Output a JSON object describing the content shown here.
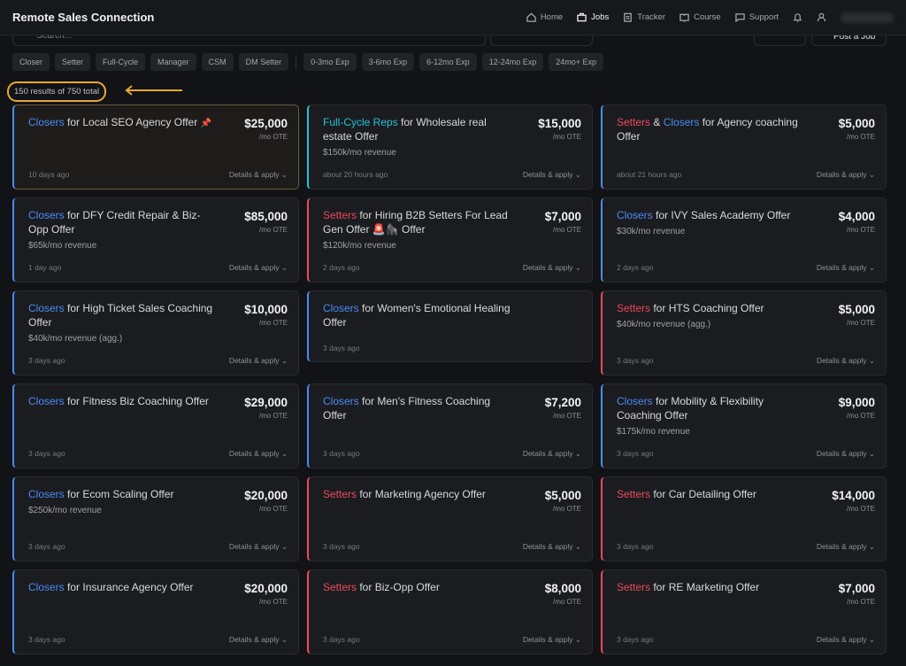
{
  "header": {
    "brand": "Remote Sales Connection",
    "nav": [
      "Home",
      "Jobs",
      "Tracker",
      "Course",
      "Support"
    ]
  },
  "search": {
    "placeholder": "Search...",
    "post": "Post a Job"
  },
  "filters": {
    "roles": [
      "Closer",
      "Setter",
      "Full-Cycle",
      "Manager",
      "CSM",
      "DM Setter"
    ],
    "experience": [
      "0-3mo Exp",
      "3-6mo Exp",
      "6-12mo Exp",
      "12-24mo Exp",
      "24mo+ Exp"
    ]
  },
  "results": "150 results of 750 total",
  "labels": {
    "per": "/mo OTE",
    "action": "Details & apply"
  },
  "role_colors": {
    "closer": "#4a8bf5",
    "setter": "#ec4a5a",
    "fullcycle": "#22c2d6"
  },
  "cards": [
    {
      "title": [
        {
          "text": "Closers",
          "role": "closer"
        },
        {
          "text": " for Local SEO Agency Offer"
        }
      ],
      "pin": "📌",
      "pinned": true,
      "price": "$25,000",
      "time": "10 days ago"
    },
    {
      "title": [
        {
          "text": "Full-Cycle Reps",
          "role": "fullcycle"
        },
        {
          "text": " for Wholesale real estate Offer"
        }
      ],
      "price": "$15,000",
      "revenue": "$150k/mo revenue",
      "time": "about 20 hours ago"
    },
    {
      "title": [
        {
          "text": "Setters",
          "role": "setter"
        },
        {
          "text": " & "
        },
        {
          "text": "Closers",
          "role": "closer"
        },
        {
          "text": " for Agency coaching Offer"
        }
      ],
      "price": "$5,000",
      "time": "about 21 hours ago"
    },
    {
      "title": [
        {
          "text": "Closers",
          "role": "closer"
        },
        {
          "text": " for DFY Credit Repair & Biz-Opp Offer"
        }
      ],
      "price": "$85,000",
      "revenue": "$65k/mo revenue",
      "time": "1 day ago"
    },
    {
      "title": [
        {
          "text": "Setters",
          "role": "setter"
        },
        {
          "text": " for Hiring B2B Setters For Lead Gen Offer 🚨🦍 Offer"
        }
      ],
      "price": "$7,000",
      "revenue": "$120k/mo revenue",
      "time": "2 days ago"
    },
    {
      "title": [
        {
          "text": "Closers",
          "role": "closer"
        },
        {
          "text": " for IVY Sales Academy Offer"
        }
      ],
      "price": "$4,000",
      "revenue": "$30k/mo revenue",
      "time": "2 days ago"
    },
    {
      "title": [
        {
          "text": "Closers",
          "role": "closer"
        },
        {
          "text": " for High Ticket Sales Coaching Offer"
        }
      ],
      "price": "$10,000",
      "revenue": "$40k/mo revenue (agg.)",
      "time": "3 days ago"
    },
    {
      "title": [
        {
          "text": "Closers",
          "role": "closer"
        },
        {
          "text": " for Women's Emotional Healing Offer"
        }
      ],
      "time": "3 days ago"
    },
    {
      "title": [
        {
          "text": "Setters",
          "role": "setter"
        },
        {
          "text": " for HTS Coaching Offer"
        }
      ],
      "price": "$5,000",
      "revenue": "$40k/mo revenue (agg.)",
      "time": "3 days ago"
    },
    {
      "title": [
        {
          "text": "Closers",
          "role": "closer"
        },
        {
          "text": " for Fitness Biz Coaching Offer"
        }
      ],
      "price": "$29,000",
      "time": "3 days ago"
    },
    {
      "title": [
        {
          "text": "Closers",
          "role": "closer"
        },
        {
          "text": " for Men's Fitness Coaching Offer"
        }
      ],
      "price": "$7,200",
      "time": "3 days ago"
    },
    {
      "title": [
        {
          "text": "Closers",
          "role": "closer"
        },
        {
          "text": " for Mobility & Flexibility Coaching Offer"
        }
      ],
      "price": "$9,000",
      "revenue": "$175k/mo revenue",
      "time": "3 days ago"
    },
    {
      "title": [
        {
          "text": "Closers",
          "role": "closer"
        },
        {
          "text": " for Ecom Scaling Offer"
        }
      ],
      "price": "$20,000",
      "revenue": "$250k/mo revenue",
      "time": "3 days ago"
    },
    {
      "title": [
        {
          "text": "Setters",
          "role": "setter"
        },
        {
          "text": " for Marketing Agency Offer"
        }
      ],
      "price": "$5,000",
      "time": "3 days ago"
    },
    {
      "title": [
        {
          "text": "Setters",
          "role": "setter"
        },
        {
          "text": " for Car Detailing Offer"
        }
      ],
      "price": "$14,000",
      "time": "3 days ago"
    },
    {
      "title": [
        {
          "text": "Closers",
          "role": "closer"
        },
        {
          "text": " for Insurance Agency Offer"
        }
      ],
      "price": "$20,000",
      "time": "3 days ago"
    },
    {
      "title": [
        {
          "text": "Setters",
          "role": "setter"
        },
        {
          "text": " for Biz-Opp Offer"
        }
      ],
      "price": "$8,000",
      "time": "3 days ago"
    },
    {
      "title": [
        {
          "text": "Setters",
          "role": "setter"
        },
        {
          "text": " for RE Marketing Offer"
        }
      ],
      "price": "$7,000",
      "time": "3 days ago"
    }
  ]
}
